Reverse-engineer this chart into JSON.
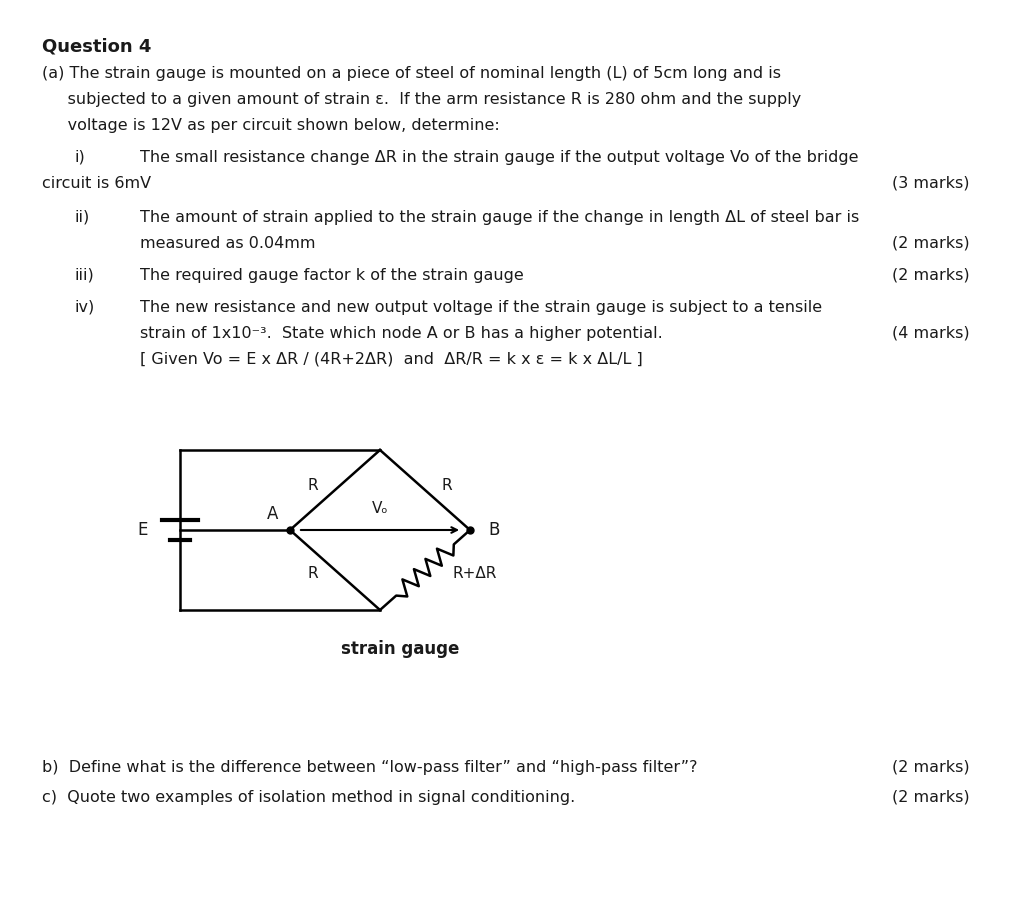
{
  "bg_color": "#ffffff",
  "text_color": "#1a1a1a",
  "title": "Question 4",
  "line1": "(a) The strain gauge is mounted on a piece of steel of nominal length (L) of 5cm long and is",
  "line2": "     subjected to a given amount of strain ε.  If the arm resistance R is 280 ohm and the supply",
  "line3": "     voltage is 12V as per circuit shown below, determine:",
  "i_num": "i)",
  "i_text1": "The small resistance change ΔR in the strain gauge if the output voltage Vo of the bridge",
  "i_text2": "circuit is 6mV",
  "i_marks": "(3 marks)",
  "ii_num": "ii)",
  "ii_text1": "The amount of strain applied to the strain gauge if the change in length ΔL of steel bar is",
  "ii_text2": "measured as 0.04mm",
  "ii_marks": "(2 marks)",
  "iii_num": "iii)",
  "iii_text1": "The required gauge factor k of the strain gauge",
  "iii_marks": "(2 marks)",
  "iv_num": "iv)",
  "iv_text1": "The new resistance and new output voltage if the strain gauge is subject to a tensile",
  "iv_text2": "strain of 1x10⁻³.  State which node A or B has a higher potential.",
  "iv_marks": "(4 marks)",
  "given": "[ Given Vo = E x ΔR / (4R+2ΔR)  and  ΔR/R = k x ε = k x ΔL/L ]",
  "b_text": "b)  Define what is the difference between “low-pass filter” and “high-pass filter”?",
  "b_marks": "(2 marks)",
  "c_text": "c)  Quote two examples of isolation method in signal conditioning.",
  "c_marks": "(2 marks)"
}
